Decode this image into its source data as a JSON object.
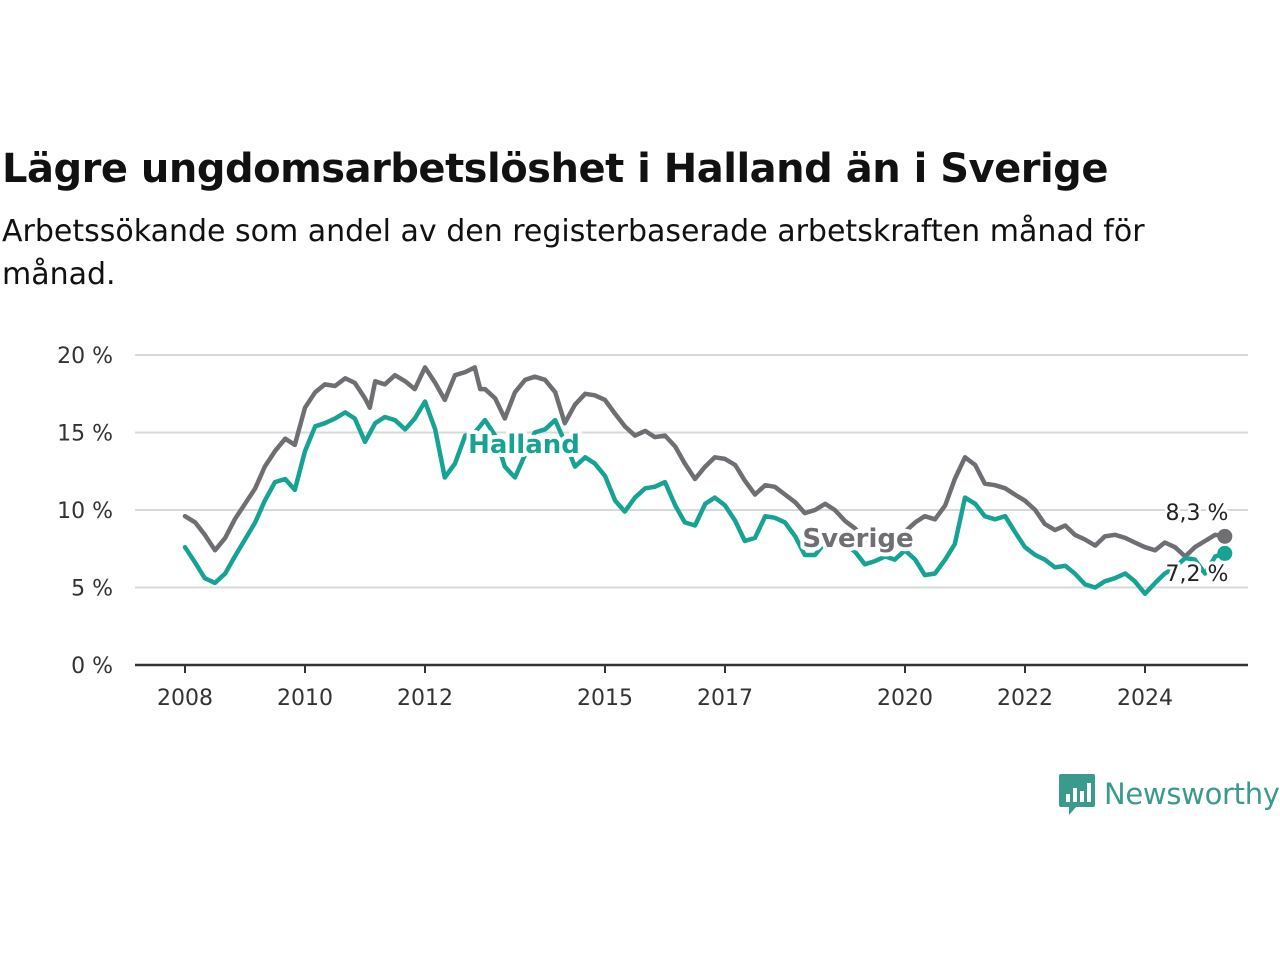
{
  "title": "Lägre ungdomsarbetslöshet i Halland än i Sverige",
  "subtitle": "Arbetssökande som andel av den registerbaserade arbetskraften månad för månad.",
  "brand": {
    "name": "Newsworthy",
    "icon": "newsworthy-logo-icon",
    "color": "#3a9a8c"
  },
  "chart_data": {
    "type": "line",
    "ylim": [
      0,
      20
    ],
    "yticks": [
      0,
      5,
      10,
      15,
      20
    ],
    "ytick_labels": [
      "0 %",
      "5 %",
      "10 %",
      "15 %",
      "20 %"
    ],
    "xlim": [
      2008,
      2025.5
    ],
    "xticks": [
      2008,
      2010,
      2012,
      2015,
      2017,
      2020,
      2022,
      2024
    ],
    "xtick_labels": [
      "2008",
      "2010",
      "2012",
      "2015",
      "2017",
      "2020",
      "2022",
      "2024"
    ],
    "grid": true,
    "series": [
      {
        "name": "Sverige",
        "color": "#6e6e73",
        "end_label": "8,3 %",
        "points": [
          [
            2008.0,
            9.6
          ],
          [
            2008.17,
            9.2
          ],
          [
            2008.33,
            8.4
          ],
          [
            2008.5,
            7.4
          ],
          [
            2008.67,
            8.2
          ],
          [
            2008.83,
            9.4
          ],
          [
            2009.0,
            10.4
          ],
          [
            2009.17,
            11.4
          ],
          [
            2009.33,
            12.8
          ],
          [
            2009.5,
            13.8
          ],
          [
            2009.67,
            14.6
          ],
          [
            2009.83,
            14.2
          ],
          [
            2010.0,
            16.6
          ],
          [
            2010.17,
            17.6
          ],
          [
            2010.33,
            18.1
          ],
          [
            2010.5,
            18.0
          ],
          [
            2010.67,
            18.5
          ],
          [
            2010.83,
            18.2
          ],
          [
            2011.0,
            17.2
          ],
          [
            2011.08,
            16.6
          ],
          [
            2011.17,
            18.3
          ],
          [
            2011.33,
            18.1
          ],
          [
            2011.5,
            18.7
          ],
          [
            2011.67,
            18.3
          ],
          [
            2011.83,
            17.8
          ],
          [
            2012.0,
            19.2
          ],
          [
            2012.17,
            18.2
          ],
          [
            2012.33,
            17.1
          ],
          [
            2012.5,
            18.7
          ],
          [
            2012.67,
            18.9
          ],
          [
            2012.83,
            19.2
          ],
          [
            2012.92,
            17.8
          ],
          [
            2013.0,
            17.8
          ],
          [
            2013.17,
            17.2
          ],
          [
            2013.33,
            15.9
          ],
          [
            2013.5,
            17.6
          ],
          [
            2013.67,
            18.4
          ],
          [
            2013.83,
            18.6
          ],
          [
            2014.0,
            18.4
          ],
          [
            2014.17,
            17.6
          ],
          [
            2014.33,
            15.6
          ],
          [
            2014.5,
            16.8
          ],
          [
            2014.67,
            17.5
          ],
          [
            2014.83,
            17.4
          ],
          [
            2015.0,
            17.1
          ],
          [
            2015.17,
            16.2
          ],
          [
            2015.33,
            15.4
          ],
          [
            2015.5,
            14.8
          ],
          [
            2015.67,
            15.1
          ],
          [
            2015.83,
            14.7
          ],
          [
            2016.0,
            14.8
          ],
          [
            2016.17,
            14.1
          ],
          [
            2016.33,
            13.0
          ],
          [
            2016.5,
            12.0
          ],
          [
            2016.67,
            12.8
          ],
          [
            2016.83,
            13.4
          ],
          [
            2017.0,
            13.3
          ],
          [
            2017.17,
            12.9
          ],
          [
            2017.33,
            11.9
          ],
          [
            2017.5,
            11.0
          ],
          [
            2017.67,
            11.6
          ],
          [
            2017.83,
            11.5
          ],
          [
            2018.0,
            11.0
          ],
          [
            2018.17,
            10.5
          ],
          [
            2018.33,
            9.8
          ],
          [
            2018.5,
            10.0
          ],
          [
            2018.67,
            10.4
          ],
          [
            2018.83,
            10.0
          ],
          [
            2019.0,
            9.3
          ],
          [
            2019.17,
            8.8
          ],
          [
            2019.33,
            8.1
          ],
          [
            2019.5,
            7.9
          ],
          [
            2019.67,
            8.6
          ],
          [
            2019.83,
            8.2
          ],
          [
            2020.0,
            8.6
          ],
          [
            2020.17,
            9.2
          ],
          [
            2020.33,
            9.6
          ],
          [
            2020.5,
            9.4
          ],
          [
            2020.67,
            10.3
          ],
          [
            2020.83,
            12.0
          ],
          [
            2021.0,
            13.4
          ],
          [
            2021.17,
            12.9
          ],
          [
            2021.33,
            11.7
          ],
          [
            2021.5,
            11.6
          ],
          [
            2021.67,
            11.4
          ],
          [
            2021.83,
            11.0
          ],
          [
            2022.0,
            10.6
          ],
          [
            2022.17,
            10.0
          ],
          [
            2022.33,
            9.1
          ],
          [
            2022.5,
            8.7
          ],
          [
            2022.67,
            9.0
          ],
          [
            2022.83,
            8.4
          ],
          [
            2023.0,
            8.1
          ],
          [
            2023.17,
            7.7
          ],
          [
            2023.33,
            8.3
          ],
          [
            2023.5,
            8.4
          ],
          [
            2023.67,
            8.2
          ],
          [
            2023.83,
            7.9
          ],
          [
            2024.0,
            7.6
          ],
          [
            2024.17,
            7.4
          ],
          [
            2024.33,
            7.9
          ],
          [
            2024.5,
            7.6
          ],
          [
            2024.67,
            7.0
          ],
          [
            2024.83,
            7.6
          ],
          [
            2025.0,
            8.0
          ],
          [
            2025.17,
            8.4
          ],
          [
            2025.33,
            8.3
          ]
        ]
      },
      {
        "name": "Halland",
        "color": "#16a394",
        "end_label": "7,2 %",
        "points": [
          [
            2008.0,
            7.6
          ],
          [
            2008.17,
            6.6
          ],
          [
            2008.33,
            5.6
          ],
          [
            2008.5,
            5.3
          ],
          [
            2008.67,
            5.9
          ],
          [
            2008.83,
            7.0
          ],
          [
            2009.0,
            8.1
          ],
          [
            2009.17,
            9.2
          ],
          [
            2009.33,
            10.6
          ],
          [
            2009.5,
            11.8
          ],
          [
            2009.67,
            12.0
          ],
          [
            2009.83,
            11.3
          ],
          [
            2010.0,
            13.8
          ],
          [
            2010.17,
            15.4
          ],
          [
            2010.33,
            15.6
          ],
          [
            2010.5,
            15.9
          ],
          [
            2010.67,
            16.3
          ],
          [
            2010.83,
            15.9
          ],
          [
            2011.0,
            14.4
          ],
          [
            2011.17,
            15.6
          ],
          [
            2011.33,
            16.0
          ],
          [
            2011.5,
            15.8
          ],
          [
            2011.67,
            15.2
          ],
          [
            2011.83,
            15.9
          ],
          [
            2012.0,
            17.0
          ],
          [
            2012.17,
            15.2
          ],
          [
            2012.33,
            12.1
          ],
          [
            2012.5,
            13.0
          ],
          [
            2012.67,
            14.8
          ],
          [
            2012.83,
            15.0
          ],
          [
            2013.0,
            15.8
          ],
          [
            2013.17,
            14.8
          ],
          [
            2013.33,
            12.8
          ],
          [
            2013.5,
            12.1
          ],
          [
            2013.67,
            13.6
          ],
          [
            2013.83,
            15.0
          ],
          [
            2014.0,
            15.2
          ],
          [
            2014.17,
            15.8
          ],
          [
            2014.33,
            14.4
          ],
          [
            2014.5,
            12.8
          ],
          [
            2014.67,
            13.4
          ],
          [
            2014.83,
            13.0
          ],
          [
            2015.0,
            12.2
          ],
          [
            2015.17,
            10.6
          ],
          [
            2015.33,
            9.9
          ],
          [
            2015.5,
            10.8
          ],
          [
            2015.67,
            11.4
          ],
          [
            2015.83,
            11.5
          ],
          [
            2016.0,
            11.8
          ],
          [
            2016.17,
            10.3
          ],
          [
            2016.33,
            9.2
          ],
          [
            2016.5,
            9.0
          ],
          [
            2016.67,
            10.4
          ],
          [
            2016.83,
            10.8
          ],
          [
            2017.0,
            10.3
          ],
          [
            2017.17,
            9.3
          ],
          [
            2017.33,
            8.0
          ],
          [
            2017.5,
            8.2
          ],
          [
            2017.67,
            9.6
          ],
          [
            2017.83,
            9.5
          ],
          [
            2018.0,
            9.2
          ],
          [
            2018.17,
            8.3
          ],
          [
            2018.33,
            7.1
          ],
          [
            2018.5,
            7.1
          ],
          [
            2018.67,
            7.9
          ],
          [
            2018.83,
            7.9
          ],
          [
            2019.0,
            7.8
          ],
          [
            2019.17,
            7.3
          ],
          [
            2019.33,
            6.5
          ],
          [
            2019.5,
            6.7
          ],
          [
            2019.67,
            7.0
          ],
          [
            2019.83,
            6.8
          ],
          [
            2020.0,
            7.4
          ],
          [
            2020.17,
            6.8
          ],
          [
            2020.33,
            5.8
          ],
          [
            2020.5,
            5.9
          ],
          [
            2020.67,
            6.8
          ],
          [
            2020.83,
            7.8
          ],
          [
            2021.0,
            10.8
          ],
          [
            2021.17,
            10.4
          ],
          [
            2021.33,
            9.6
          ],
          [
            2021.5,
            9.4
          ],
          [
            2021.67,
            9.6
          ],
          [
            2021.83,
            8.6
          ],
          [
            2022.0,
            7.6
          ],
          [
            2022.17,
            7.1
          ],
          [
            2022.33,
            6.8
          ],
          [
            2022.5,
            6.3
          ],
          [
            2022.67,
            6.4
          ],
          [
            2022.83,
            5.9
          ],
          [
            2023.0,
            5.2
          ],
          [
            2023.17,
            5.0
          ],
          [
            2023.33,
            5.4
          ],
          [
            2023.5,
            5.6
          ],
          [
            2023.67,
            5.9
          ],
          [
            2023.83,
            5.4
          ],
          [
            2024.0,
            4.6
          ],
          [
            2024.17,
            5.3
          ],
          [
            2024.33,
            5.9
          ],
          [
            2024.5,
            6.3
          ],
          [
            2024.67,
            6.9
          ],
          [
            2024.83,
            6.8
          ],
          [
            2025.0,
            5.9
          ],
          [
            2025.17,
            7.0
          ],
          [
            2025.33,
            7.2
          ]
        ]
      }
    ]
  }
}
